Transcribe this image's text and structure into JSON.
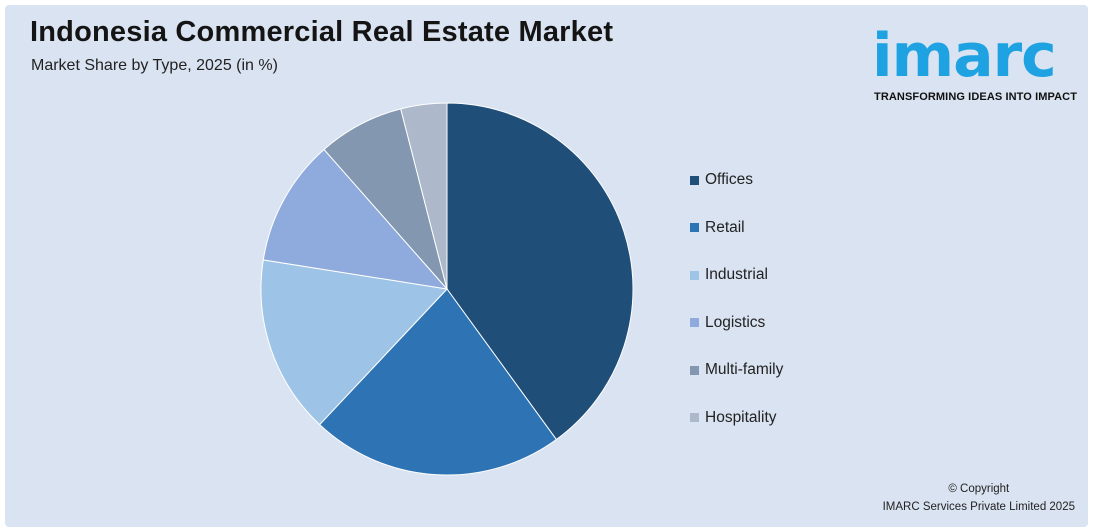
{
  "header": {
    "title": "Indonesia Commercial Real Estate Market",
    "subtitle": "Market Share by Type, 2025 (in %)"
  },
  "logo": {
    "wordmark": "imarc",
    "tagline": "TRANSFORMING IDEAS INTO IMPACT",
    "color": "#1ea2e2"
  },
  "footer": {
    "copyright": "© Copyright",
    "company": "IMARC Services Private Limited 2025"
  },
  "chart_data": {
    "type": "pie",
    "title": "Indonesia Commercial Real Estate Market",
    "subtitle": "Market Share by Type, 2025 (in %)",
    "legend_position": "right",
    "categories": [
      "Offices",
      "Retail",
      "Industrial",
      "Logistics",
      "Multi-family",
      "Hospitality"
    ],
    "values": [
      40,
      22,
      15.5,
      11,
      7.5,
      4
    ],
    "colors": [
      "#1f4e79",
      "#2e74b5",
      "#9dc3e6",
      "#8faadc",
      "#8497b0",
      "#adb9ca"
    ]
  }
}
